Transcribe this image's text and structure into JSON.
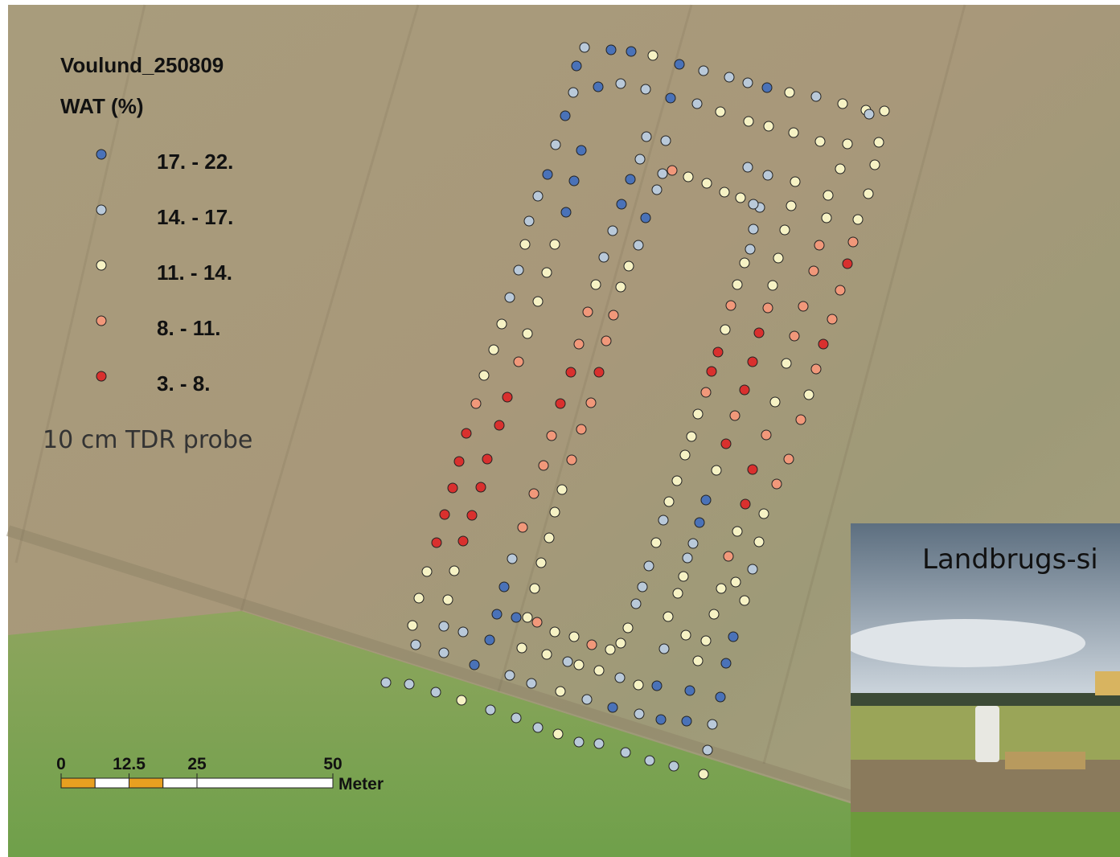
{
  "map": {
    "title": "Voulund_250809",
    "legend": {
      "title": "WAT (%)",
      "classes": [
        {
          "label": "17. - 22.",
          "color": "#4a72b8"
        },
        {
          "label": "14. - 17.",
          "color": "#b9c9d9"
        },
        {
          "label": "11. - 14.",
          "color": "#f6f2c4"
        },
        {
          "label": "8. - 11.",
          "color": "#f1987a"
        },
        {
          "label": "3. - 8.",
          "color": "#d9302e"
        }
      ]
    },
    "note": "10 cm TDR probe",
    "scale_bar": {
      "ticks": [
        0,
        12.5,
        25,
        50
      ],
      "unit": "Meter"
    },
    "inset": {
      "caption": "Landbrugs-si"
    }
  }
}
